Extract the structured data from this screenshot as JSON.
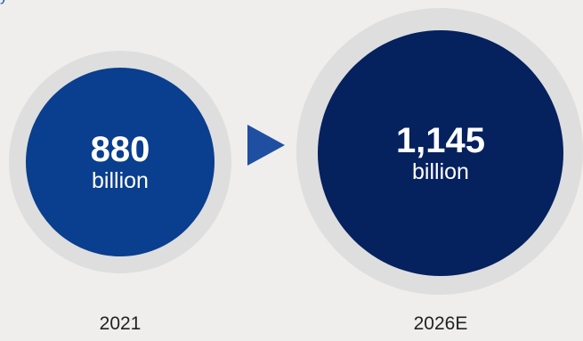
{
  "header": {
    "partial_label": "y"
  },
  "chart_data": {
    "type": "bubble",
    "categories": [
      "2021",
      "2026E"
    ],
    "values": [
      880,
      1145
    ],
    "value_labels": [
      "880",
      "1,145"
    ],
    "unit": "billion",
    "colors": [
      "#0a3e8e",
      "#05215e"
    ]
  }
}
